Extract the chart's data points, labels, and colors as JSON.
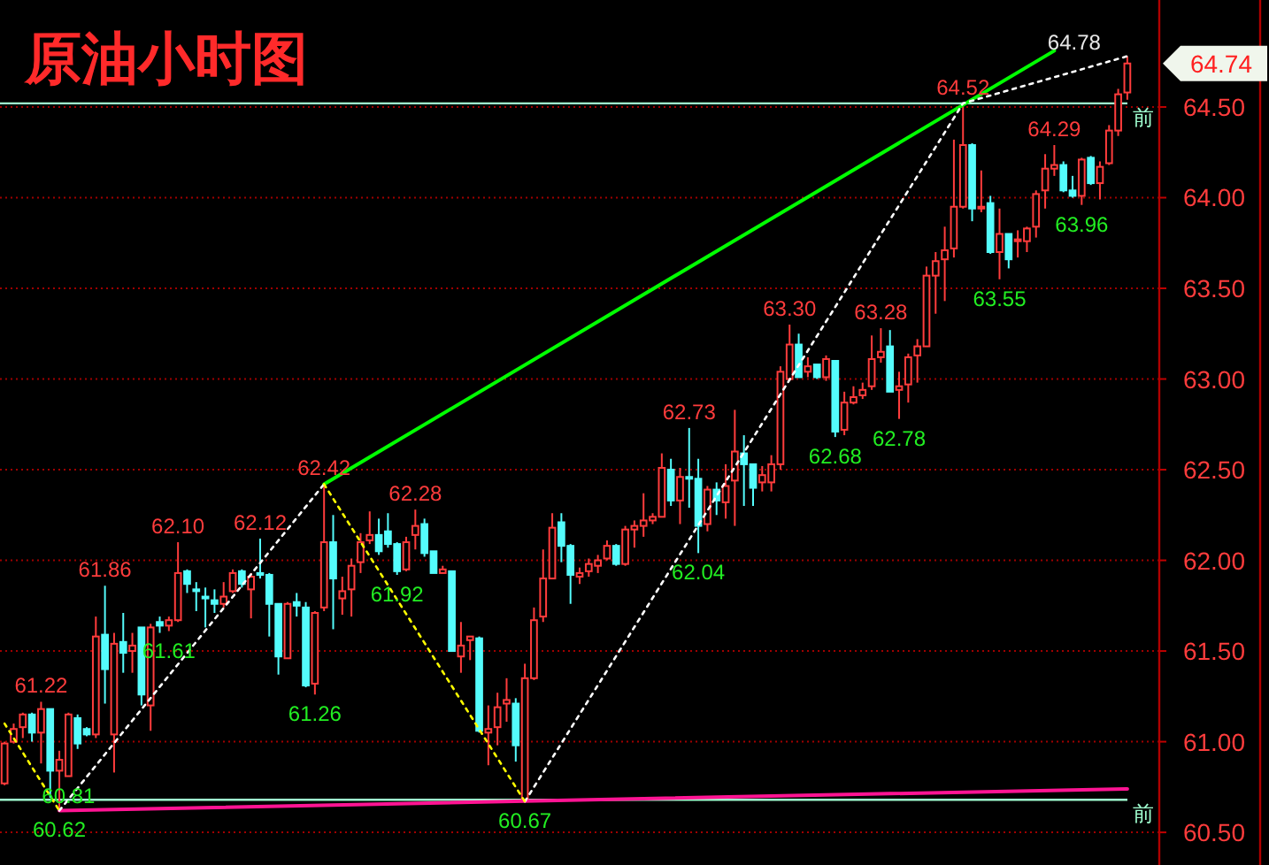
{
  "chart_data": {
    "type": "candlestick",
    "title": "原油小时图",
    "categories": [
      null,
      null,
      null,
      null,
      null,
      null,
      null,
      null,
      null,
      null,
      null,
      null,
      null,
      null,
      null,
      null,
      null,
      null,
      null,
      null,
      null,
      null,
      null,
      null,
      null,
      null,
      null,
      null,
      null,
      null,
      null,
      null,
      null,
      null,
      null,
      null,
      null,
      null,
      null,
      null,
      null,
      null,
      null,
      null,
      null,
      null,
      null,
      null,
      null,
      null,
      null,
      null,
      null,
      null,
      null,
      null,
      null,
      null,
      null,
      null,
      null,
      null,
      null,
      null,
      null,
      null,
      null,
      null,
      null,
      null,
      null,
      null,
      null,
      null,
      null,
      null,
      null,
      null,
      null,
      null,
      null,
      null,
      null,
      null,
      null,
      null,
      null,
      null,
      null,
      null,
      null,
      null,
      null,
      null,
      null,
      null,
      null,
      null,
      null,
      null,
      null,
      null,
      null,
      null,
      null,
      null,
      null,
      null,
      null,
      null,
      null,
      null,
      null,
      null,
      null,
      null,
      null,
      null,
      null,
      null,
      null,
      null,
      null,
      null
    ],
    "ohlc": [
      [
        60.77,
        61.0,
        60.76,
        60.99
      ],
      [
        61.0,
        61.1,
        60.99,
        61.07
      ],
      [
        61.08,
        61.16,
        61.02,
        61.15
      ],
      [
        61.15,
        61.16,
        61.0,
        61.05
      ],
      [
        61.05,
        61.22,
        60.88,
        61.18
      ],
      [
        61.18,
        61.18,
        60.69,
        60.84
      ],
      [
        60.84,
        60.95,
        60.62,
        60.9
      ],
      [
        60.81,
        61.16,
        60.81,
        61.15
      ],
      [
        61.13,
        61.15,
        60.96,
        60.99
      ],
      [
        61.07,
        61.08,
        61.03,
        61.04
      ],
      [
        61.04,
        61.69,
        61.02,
        61.58
      ],
      [
        61.59,
        61.86,
        61.21,
        61.4
      ],
      [
        61.04,
        61.6,
        60.83,
        61.54
      ],
      [
        61.55,
        61.71,
        61.38,
        61.49
      ],
      [
        61.5,
        61.6,
        61.38,
        61.53
      ],
      [
        61.63,
        61.63,
        61.2,
        61.26
      ],
      [
        61.2,
        61.65,
        61.06,
        61.63
      ],
      [
        61.66,
        61.69,
        61.6,
        61.64
      ],
      [
        61.64,
        61.69,
        61.61,
        61.67
      ],
      [
        61.67,
        62.1,
        61.66,
        61.93
      ],
      [
        61.94,
        61.95,
        61.82,
        61.87
      ],
      [
        61.84,
        61.88,
        61.72,
        61.83
      ],
      [
        61.8,
        61.85,
        61.63,
        61.79
      ],
      [
        61.78,
        61.84,
        61.71,
        61.76
      ],
      [
        61.76,
        61.88,
        61.74,
        61.8
      ],
      [
        61.83,
        61.95,
        61.82,
        61.93
      ],
      [
        61.94,
        61.95,
        61.85,
        61.87
      ],
      [
        61.84,
        61.93,
        61.68,
        61.91
      ],
      [
        61.93,
        62.12,
        61.9,
        61.92
      ],
      [
        61.92,
        61.93,
        61.58,
        61.76
      ],
      [
        61.76,
        61.76,
        61.37,
        61.47
      ],
      [
        61.46,
        61.77,
        61.46,
        61.76
      ],
      [
        61.77,
        61.82,
        61.69,
        61.75
      ],
      [
        61.74,
        61.77,
        61.3,
        61.31
      ],
      [
        61.32,
        61.72,
        61.26,
        61.71
      ],
      [
        61.74,
        62.42,
        61.72,
        62.1
      ],
      [
        62.1,
        62.25,
        61.62,
        61.9
      ],
      [
        61.79,
        61.91,
        61.7,
        61.83
      ],
      [
        61.84,
        62.01,
        61.69,
        61.97
      ],
      [
        61.99,
        62.15,
        61.93,
        62.1
      ],
      [
        62.11,
        62.27,
        62.09,
        62.14
      ],
      [
        62.14,
        62.23,
        62.03,
        62.05
      ],
      [
        62.16,
        62.26,
        62.07,
        62.09
      ],
      [
        62.09,
        62.1,
        61.92,
        61.94
      ],
      [
        61.95,
        62.13,
        61.94,
        62.1
      ],
      [
        62.14,
        62.28,
        62.06,
        62.19
      ],
      [
        62.2,
        62.23,
        62.02,
        62.04
      ],
      [
        62.05,
        62.05,
        61.93,
        61.93
      ],
      [
        61.93,
        61.97,
        61.93,
        61.95
      ],
      [
        61.94,
        61.94,
        61.5,
        61.5
      ],
      [
        61.47,
        61.66,
        61.38,
        61.53
      ],
      [
        61.56,
        61.58,
        61.45,
        61.58
      ],
      [
        61.57,
        61.58,
        61.05,
        61.06
      ],
      [
        61.05,
        61.2,
        60.87,
        61.07
      ],
      [
        61.08,
        61.27,
        60.98,
        61.19
      ],
      [
        61.21,
        61.35,
        61.11,
        61.23
      ],
      [
        61.21,
        61.24,
        60.89,
        60.98
      ],
      [
        60.68,
        61.43,
        60.67,
        61.35
      ],
      [
        61.35,
        61.74,
        61.34,
        61.67
      ],
      [
        61.69,
        62.06,
        61.66,
        61.9
      ],
      [
        61.9,
        62.26,
        61.9,
        62.18
      ],
      [
        62.21,
        62.26,
        61.99,
        62.08
      ],
      [
        62.08,
        62.09,
        61.76,
        61.92
      ],
      [
        61.91,
        61.96,
        61.87,
        61.93
      ],
      [
        61.94,
        62.01,
        61.91,
        61.98
      ],
      [
        61.97,
        62.03,
        61.93,
        62.0
      ],
      [
        62.01,
        62.11,
        62.0,
        62.08
      ],
      [
        62.08,
        62.09,
        61.97,
        61.98
      ],
      [
        61.98,
        62.19,
        61.97,
        62.17
      ],
      [
        62.17,
        62.22,
        62.07,
        62.19
      ],
      [
        62.19,
        62.37,
        62.13,
        62.22
      ],
      [
        62.22,
        62.26,
        62.2,
        62.24
      ],
      [
        62.24,
        62.59,
        62.24,
        62.51
      ],
      [
        62.5,
        62.56,
        62.3,
        62.33
      ],
      [
        62.33,
        62.51,
        62.2,
        62.46
      ],
      [
        62.46,
        62.73,
        62.29,
        62.45
      ],
      [
        62.45,
        62.56,
        62.04,
        62.19
      ],
      [
        62.2,
        62.41,
        62.16,
        62.39
      ],
      [
        62.39,
        62.43,
        62.25,
        62.33
      ],
      [
        62.32,
        62.53,
        62.23,
        62.41
      ],
      [
        62.44,
        62.83,
        62.19,
        62.6
      ],
      [
        62.59,
        62.69,
        62.3,
        62.53
      ],
      [
        62.53,
        62.53,
        62.3,
        62.4
      ],
      [
        62.43,
        62.52,
        62.38,
        62.47
      ],
      [
        62.43,
        62.58,
        62.38,
        62.53
      ],
      [
        62.53,
        63.07,
        62.5,
        63.04
      ],
      [
        63.0,
        63.3,
        62.99,
        63.19
      ],
      [
        63.19,
        63.25,
        63.01,
        63.01
      ],
      [
        63.04,
        63.12,
        63.01,
        63.07
      ],
      [
        63.08,
        63.08,
        63.0,
        63.01
      ],
      [
        63.01,
        63.13,
        62.99,
        63.11
      ],
      [
        63.1,
        63.1,
        62.68,
        62.71
      ],
      [
        62.72,
        62.93,
        62.69,
        62.87
      ],
      [
        62.87,
        62.96,
        62.86,
        62.9
      ],
      [
        62.91,
        62.98,
        62.89,
        62.94
      ],
      [
        62.96,
        63.24,
        62.94,
        63.11
      ],
      [
        63.12,
        63.28,
        63.09,
        63.15
      ],
      [
        63.18,
        63.27,
        62.93,
        62.93
      ],
      [
        62.94,
        63.04,
        62.78,
        62.96
      ],
      [
        62.97,
        63.14,
        62.87,
        63.12
      ],
      [
        63.13,
        63.22,
        62.98,
        63.18
      ],
      [
        63.18,
        63.62,
        63.18,
        63.57
      ],
      [
        63.57,
        63.7,
        63.36,
        63.65
      ],
      [
        63.66,
        63.84,
        63.43,
        63.71
      ],
      [
        63.72,
        64.32,
        63.67,
        63.95
      ],
      [
        63.95,
        64.52,
        63.94,
        64.29
      ],
      [
        64.29,
        64.3,
        63.87,
        63.94
      ],
      [
        63.94,
        64.15,
        63.92,
        63.95
      ],
      [
        63.97,
        64.01,
        63.69,
        63.7
      ],
      [
        63.7,
        63.94,
        63.55,
        63.8
      ],
      [
        63.8,
        63.8,
        63.61,
        63.66
      ],
      [
        63.76,
        63.82,
        63.67,
        63.77
      ],
      [
        63.76,
        63.84,
        63.7,
        63.83
      ],
      [
        63.84,
        64.04,
        63.78,
        64.02
      ],
      [
        64.04,
        64.24,
        63.94,
        64.16
      ],
      [
        64.16,
        64.29,
        64.12,
        64.18
      ],
      [
        64.18,
        64.2,
        64.03,
        64.04
      ],
      [
        64.04,
        64.12,
        64.0,
        64.01
      ],
      [
        64.01,
        64.22,
        63.96,
        64.21
      ],
      [
        64.22,
        64.23,
        64.07,
        64.08
      ],
      [
        64.08,
        64.2,
        63.99,
        64.17
      ],
      [
        64.19,
        64.4,
        64.18,
        64.37
      ],
      [
        64.37,
        64.6,
        64.34,
        64.57
      ],
      [
        64.58,
        64.78,
        64.54,
        64.74
      ]
    ],
    "series": [
      {
        "type": "line",
        "color": "#00ff00",
        "line_style": "solid",
        "values": [
          null,
          null,
          null,
          null,
          null,
          null,
          null,
          null,
          null,
          null,
          null,
          null,
          null,
          null,
          null,
          null,
          null,
          null,
          null,
          null,
          null,
          null,
          null,
          null,
          null,
          null,
          null,
          null,
          null,
          null,
          null,
          null,
          null,
          null,
          null,
          62.42,
          null,
          null,
          null,
          null,
          null,
          null,
          null,
          null,
          null,
          null,
          null,
          null,
          null,
          null,
          null,
          null,
          null,
          null,
          null,
          null,
          null,
          null,
          null,
          null,
          null,
          null,
          null,
          null,
          null,
          null,
          null,
          null,
          null,
          null,
          null,
          null,
          null,
          null,
          null,
          null,
          null,
          null,
          null,
          null,
          null,
          null,
          null,
          null,
          null,
          null,
          null,
          null,
          null,
          null,
          null,
          null,
          null,
          null,
          null,
          null,
          null,
          null,
          null,
          null,
          null,
          null,
          null,
          null,
          null,
          null,
          null,
          null,
          null,
          null,
          null,
          null,
          null,
          null,
          null,
          64.81,
          null,
          null,
          null,
          null,
          null,
          null,
          null,
          null
        ]
      },
      {
        "type": "line",
        "color": "#ff1493",
        "line_style": "solid",
        "values": [
          null,
          null,
          null,
          null,
          null,
          null,
          60.62,
          null,
          null,
          null,
          null,
          null,
          null,
          null,
          null,
          null,
          null,
          null,
          null,
          null,
          null,
          null,
          null,
          null,
          null,
          null,
          null,
          null,
          null,
          null,
          null,
          null,
          null,
          null,
          null,
          null,
          null,
          null,
          null,
          null,
          null,
          null,
          null,
          null,
          null,
          null,
          null,
          null,
          null,
          null,
          null,
          null,
          null,
          null,
          null,
          null,
          null,
          null,
          null,
          null,
          null,
          null,
          null,
          null,
          null,
          null,
          null,
          null,
          null,
          null,
          null,
          null,
          null,
          null,
          null,
          null,
          null,
          null,
          null,
          null,
          null,
          null,
          null,
          null,
          null,
          null,
          null,
          null,
          null,
          null,
          null,
          null,
          null,
          null,
          null,
          null,
          null,
          null,
          null,
          null,
          null,
          null,
          null,
          null,
          null,
          null,
          null,
          null,
          null,
          null,
          null,
          null,
          null,
          null,
          null,
          null,
          null,
          null,
          null,
          null,
          null,
          null,
          null,
          60.74
        ]
      },
      {
        "type": "line",
        "color": "#ffffff",
        "line_style": "dotted",
        "values": [
          null,
          null,
          null,
          null,
          null,
          null,
          60.62,
          null,
          null,
          null,
          null,
          null,
          null,
          null,
          null,
          null,
          null,
          null,
          null,
          null,
          null,
          null,
          null,
          null,
          null,
          null,
          null,
          null,
          null,
          null,
          null,
          null,
          null,
          null,
          null,
          62.42,
          null,
          null,
          null,
          null,
          null,
          null,
          null,
          null,
          null,
          null,
          null,
          null,
          null,
          null,
          null,
          null,
          null,
          null,
          null,
          null,
          null,
          null,
          null,
          null,
          null,
          null,
          null,
          null,
          null,
          null,
          null,
          null,
          null,
          null,
          null,
          null,
          null,
          null,
          null,
          null,
          null,
          null,
          null,
          null,
          null,
          null,
          null,
          null,
          null,
          null,
          null,
          null,
          null,
          null,
          null,
          null,
          null,
          null,
          null,
          null,
          null,
          null,
          null,
          null,
          null,
          null,
          null,
          null,
          null,
          null,
          null,
          null,
          null,
          null,
          null,
          null,
          null,
          null,
          null,
          null,
          null,
          null,
          null,
          null,
          null,
          null,
          null,
          null
        ]
      },
      {
        "type": "line",
        "color": "#ffffff",
        "line_style": "dotted",
        "values": [
          null,
          null,
          null,
          null,
          null,
          null,
          null,
          null,
          null,
          null,
          null,
          null,
          null,
          null,
          null,
          null,
          null,
          null,
          null,
          null,
          null,
          null,
          null,
          null,
          null,
          null,
          null,
          null,
          null,
          null,
          null,
          null,
          null,
          null,
          null,
          null,
          null,
          null,
          null,
          null,
          null,
          null,
          null,
          null,
          null,
          null,
          null,
          null,
          null,
          null,
          null,
          null,
          null,
          null,
          null,
          null,
          null,
          60.67,
          null,
          null,
          null,
          null,
          null,
          null,
          null,
          null,
          null,
          null,
          null,
          null,
          null,
          null,
          null,
          null,
          null,
          null,
          null,
          null,
          null,
          null,
          null,
          null,
          null,
          null,
          null,
          null,
          null,
          null,
          null,
          null,
          null,
          null,
          null,
          null,
          null,
          null,
          null,
          null,
          null,
          null,
          null,
          null,
          null,
          null,
          null,
          64.52,
          null,
          null,
          null,
          null,
          null,
          null,
          null,
          null,
          null,
          null,
          null,
          null,
          null,
          null,
          null,
          null,
          null,
          64.78
        ]
      },
      {
        "type": "line",
        "color": "#ffff00",
        "line_style": "dotted",
        "values": [
          61.1,
          null,
          null,
          null,
          null,
          null,
          60.62,
          null,
          null,
          null,
          null,
          null,
          null,
          null,
          null,
          null,
          null,
          null,
          null,
          null,
          null,
          null,
          null,
          null,
          null,
          null,
          null,
          null,
          null,
          null,
          null,
          null,
          null,
          null,
          null,
          null,
          null,
          null,
          null,
          null,
          null,
          null,
          null,
          null,
          null,
          null,
          null,
          null,
          null,
          null,
          null,
          null,
          null,
          null,
          null,
          null,
          null,
          null,
          null,
          null,
          null,
          null,
          null,
          null,
          null,
          null,
          null,
          null,
          null,
          null,
          null,
          null,
          null,
          null,
          null,
          null,
          null,
          null,
          null,
          null,
          null,
          null,
          null,
          null,
          null,
          null,
          null,
          null,
          null,
          null,
          null,
          null,
          null,
          null,
          null,
          null,
          null,
          null,
          null,
          null,
          null,
          null,
          null,
          null,
          null,
          null,
          null,
          null,
          null,
          null,
          null,
          null,
          null,
          null,
          null,
          null,
          null,
          null,
          null,
          null,
          null,
          null,
          null,
          null
        ]
      },
      {
        "type": "line",
        "color": "#ffff00",
        "line_style": "dotted",
        "values": [
          null,
          null,
          null,
          null,
          null,
          null,
          null,
          null,
          null,
          null,
          null,
          null,
          null,
          null,
          null,
          null,
          null,
          null,
          null,
          null,
          null,
          null,
          null,
          null,
          null,
          null,
          null,
          null,
          null,
          null,
          null,
          null,
          null,
          null,
          null,
          62.42,
          null,
          null,
          null,
          null,
          null,
          null,
          null,
          null,
          null,
          null,
          null,
          null,
          null,
          null,
          null,
          null,
          null,
          null,
          null,
          null,
          null,
          60.67,
          null,
          null,
          null,
          null,
          null,
          null,
          null,
          null,
          null,
          null,
          null,
          null,
          null,
          null,
          null,
          null,
          null,
          null,
          null,
          null,
          null,
          null,
          null,
          null,
          null,
          null,
          null,
          null,
          null,
          null,
          null,
          null,
          null,
          null,
          null,
          null,
          null,
          null,
          null,
          null,
          null,
          null,
          null,
          null,
          null,
          null,
          null,
          null,
          null,
          null,
          null,
          null,
          null,
          null,
          null,
          null,
          null,
          null,
          null,
          null,
          null,
          null,
          null,
          null,
          null,
          null
        ]
      }
    ],
    "ref_lines": [
      {
        "axis": "y",
        "value": 64.52,
        "label": "前",
        "color": "#a0ffd0"
      },
      {
        "axis": "y",
        "value": 60.68,
        "label": "前",
        "color": "#a0ffd0"
      }
    ],
    "annotations": [
      {
        "text": "61.22",
        "y": 61.22
      },
      {
        "text": "61.86",
        "y": 61.86
      },
      {
        "text": "62.10",
        "y": 62.1
      },
      {
        "text": "62.12",
        "y": 62.12
      },
      {
        "text": "62.42",
        "y": 62.42
      },
      {
        "text": "62.28",
        "y": 62.28
      },
      {
        "text": "62.73",
        "y": 62.73
      },
      {
        "text": "63.30",
        "y": 63.3
      },
      {
        "text": "63.28",
        "y": 63.28
      },
      {
        "text": "64.52",
        "y": 64.52
      },
      {
        "text": "64.29",
        "y": 64.29
      },
      "64.78",
      {
        "text": "60.62",
        "y": 60.62
      },
      {
        "text": "60.81",
        "y": 60.81
      },
      {
        "text": "61.61",
        "y": 61.61
      },
      {
        "text": "61.26",
        "y": 61.26
      },
      {
        "text": "61.92",
        "y": 61.92
      },
      {
        "text": "60.67",
        "y": 60.67
      },
      {
        "text": "62.04",
        "y": 62.04
      },
      {
        "text": "62.68",
        "y": 62.68
      },
      {
        "text": "62.78",
        "y": 62.78
      },
      {
        "text": "63.55",
        "y": 63.55
      },
      {
        "text": "63.96",
        "y": 63.96
      },
      "64.74"
    ],
    "ylim": [
      60.32,
      65.09
    ],
    "yticks": [
      {
        "value": 60.5,
        "label": "60.50"
      },
      {
        "value": 61,
        "label": "61.00"
      },
      {
        "value": 61.5,
        "label": "61.50"
      },
      {
        "value": 62,
        "label": "62.00"
      },
      {
        "value": 62.5,
        "label": "62.50"
      },
      {
        "value": 63,
        "label": "63.00"
      },
      {
        "value": 63.5,
        "label": "63.50"
      },
      {
        "value": 64,
        "label": "64.00"
      },
      {
        "value": 64.5,
        "label": "64.50"
      }
    ],
    "grid": "y"
  }
}
